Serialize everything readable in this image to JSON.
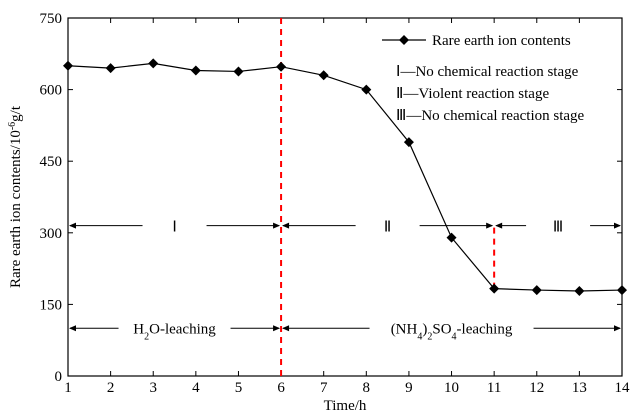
{
  "chart_data": {
    "type": "line",
    "xlabel": "Time/h",
    "ylabel_main": "Rare earth ion contents/10",
    "ylabel_sup": "-6",
    "ylabel_end": "g/t",
    "xlim": [
      1,
      14
    ],
    "ylim": [
      0,
      750
    ],
    "x_ticks": [
      1,
      2,
      3,
      4,
      5,
      6,
      7,
      8,
      9,
      10,
      11,
      12,
      13,
      14
    ],
    "y_ticks": [
      0,
      150,
      300,
      450,
      600,
      750
    ],
    "grid": false,
    "legend_position": "top-right",
    "series": [
      {
        "name": "Rare earth ion contents",
        "marker": "diamond",
        "color": "#000000",
        "x": [
          1,
          2,
          3,
          4,
          5,
          6,
          7,
          8,
          9,
          10,
          11,
          12,
          13,
          14
        ],
        "y": [
          650,
          645,
          655,
          640,
          638,
          648,
          630,
          600,
          490,
          290,
          183,
          180,
          178,
          180
        ]
      }
    ],
    "legend_notes": [
      {
        "roman": "Ⅰ",
        "text": "—No chemical reaction stage"
      },
      {
        "roman": "Ⅱ",
        "text": "—Violent reaction stage"
      },
      {
        "roman": "Ⅲ",
        "text": "—No chemical reaction stage"
      }
    ],
    "stage_dividers": [
      {
        "x": 6,
        "y_from": 0,
        "y_to": 750
      },
      {
        "x": 11,
        "y_from": 183,
        "y_to": 315
      }
    ],
    "divider_color": "#ff0000",
    "stages": [
      {
        "label": "Ⅰ",
        "x_from": 1,
        "x_to": 6,
        "y": 315
      },
      {
        "label": "Ⅱ",
        "x_from": 6,
        "x_to": 11,
        "y": 315
      },
      {
        "label": "Ⅲ",
        "x_from": 11,
        "x_to": 14,
        "y": 315
      }
    ],
    "phases": [
      {
        "base": "H",
        "sub": "2",
        "rest": "O-leaching",
        "x_from": 1,
        "x_to": 6,
        "y": 100
      },
      {
        "pre": "(NH",
        "sub1": "4",
        "mid": ")",
        "sub2": "2",
        "base": "SO",
        "sub3": "4",
        "rest": "-leaching",
        "x_from": 6,
        "x_to": 14,
        "y": 100
      }
    ]
  }
}
